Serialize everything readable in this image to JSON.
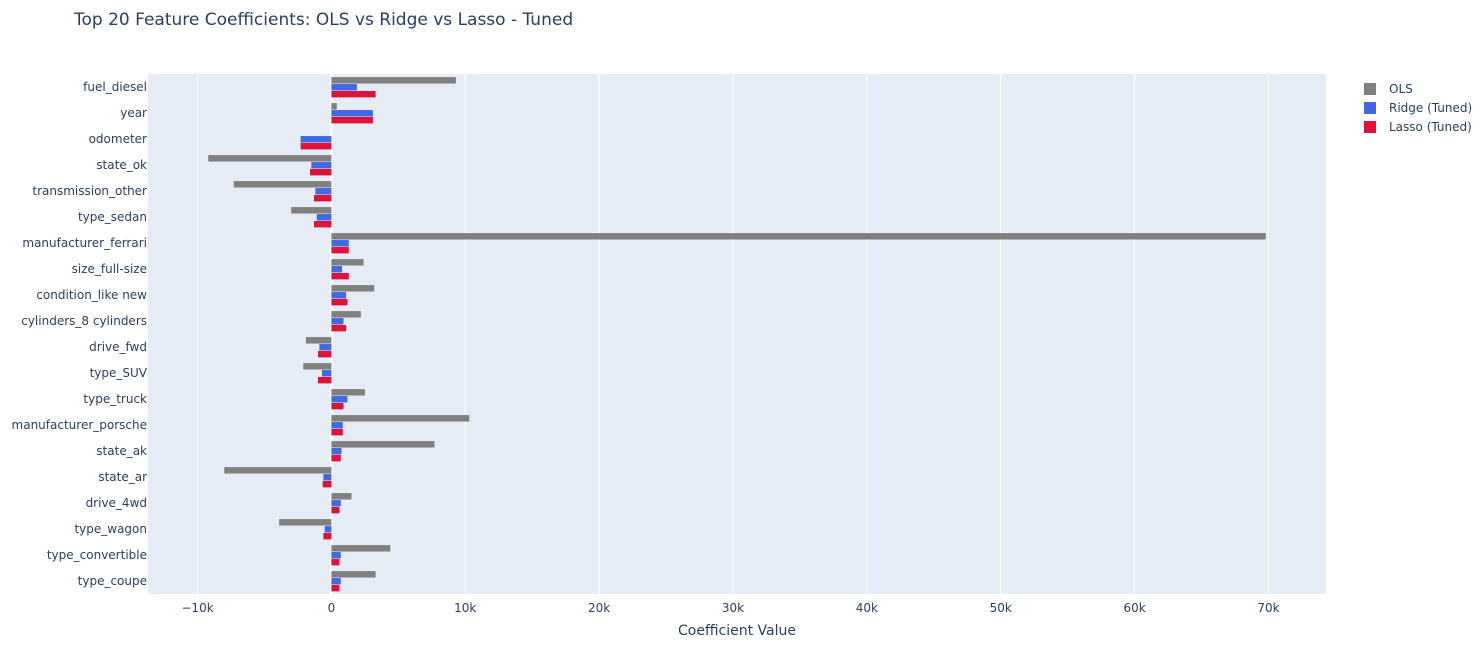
{
  "chart_data": {
    "type": "bar",
    "orientation": "horizontal",
    "title": "Top 20 Feature Coefficients: OLS vs Ridge vs Lasso - Tuned",
    "xlabel": "Coefficient Value",
    "ylabel": "",
    "xlim": [
      -13700,
      74300
    ],
    "x_ticks": [
      -10000,
      0,
      10000,
      20000,
      30000,
      40000,
      50000,
      60000,
      70000
    ],
    "x_tick_labels": [
      "−10k",
      "0",
      "10k",
      "20k",
      "30k",
      "40k",
      "50k",
      "60k",
      "70k"
    ],
    "grid": true,
    "legend_position": "top-right",
    "categories": [
      "fuel_diesel",
      "year",
      "odometer",
      "state_ok",
      "transmission_other",
      "type_sedan",
      "manufacturer_ferrari",
      "size_full-size",
      "condition_like new",
      "cylinders_8 cylinders",
      "drive_fwd",
      "type_SUV",
      "type_truck",
      "manufacturer_porsche",
      "state_ak",
      "state_ar",
      "drive_4wd",
      "type_wagon",
      "type_convertible",
      "type_coupe"
    ],
    "series": [
      {
        "name": "OLS",
        "color": "#808080",
        "values": [
          9300,
          400,
          0,
          -9200,
          -7300,
          -3000,
          69800,
          2400,
          3200,
          2200,
          -1900,
          -2100,
          2500,
          10300,
          7700,
          -8000,
          1500,
          -3900,
          4400,
          3300
        ]
      },
      {
        "name": "Ridge (Tuned)",
        "color": "#4169e1",
        "values": [
          1900,
          3100,
          -2300,
          -1500,
          -1200,
          -1100,
          1300,
          800,
          1100,
          900,
          -900,
          -700,
          1200,
          850,
          750,
          -600,
          700,
          -500,
          700,
          700
        ]
      },
      {
        "name": "Lasso (Tuned)",
        "color": "#dc143c",
        "values": [
          3300,
          3100,
          -2300,
          -1600,
          -1300,
          -1300,
          1300,
          1300,
          1200,
          1100,
          -1000,
          -1000,
          900,
          850,
          700,
          -650,
          600,
          -600,
          600,
          600
        ]
      }
    ]
  }
}
